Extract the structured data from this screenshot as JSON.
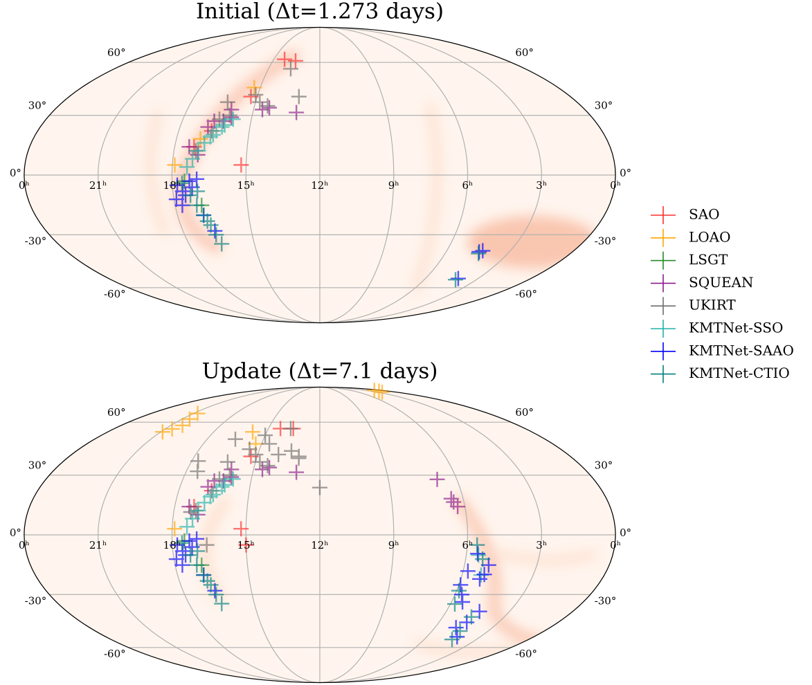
{
  "chart_data": [
    {
      "type": "skymap",
      "title": "Initial (Δt=1.273 days)",
      "grid": true,
      "xticks": [
        {
          "value": 24,
          "label": "0ʰ"
        },
        {
          "value": 21,
          "label": "21ʰ"
        },
        {
          "value": 18,
          "label": "18ʰ"
        },
        {
          "value": 15,
          "label": "15ʰ"
        },
        {
          "value": 12,
          "label": "12ʰ"
        },
        {
          "value": 9,
          "label": "9ʰ"
        },
        {
          "value": 6,
          "label": "6ʰ"
        },
        {
          "value": 3,
          "label": "3ʰ"
        },
        {
          "value": 0,
          "label": "0ʰ"
        }
      ],
      "yticks": [
        {
          "value": -60,
          "label": "-60°"
        },
        {
          "value": -30,
          "label": "-30°"
        },
        {
          "value": 0,
          "label": "0°"
        },
        {
          "value": 30,
          "label": "30°"
        },
        {
          "value": 60,
          "label": "60°"
        }
      ],
      "series": [
        {
          "name": "SAO",
          "color": "#ff2f2f",
          "x": [
            14.3,
            13.55,
            15.3,
            15.2,
            16.6,
            17.2
          ],
          "values": [
            62,
            61,
            40,
            5,
            22,
            14
          ]
        },
        {
          "name": "LOAO",
          "color": "#ffa500",
          "x": [
            15.3,
            17.9,
            17.0
          ],
          "values": [
            45,
            5,
            18
          ]
        },
        {
          "name": "LSGT",
          "color": "#228b22",
          "x": [
            17.5,
            16.9
          ],
          "values": [
            -3,
            -15
          ]
        },
        {
          "name": "SQUEAN",
          "color": "#8b1a8b",
          "x": [
            16.2,
            16.8,
            17.4,
            16.6,
            15.9,
            14.6,
            14.3,
            13.05,
            17.0,
            16.0
          ],
          "values": [
            27,
            24,
            14,
            27,
            29,
            33,
            34,
            31.5,
            10,
            33
          ]
        },
        {
          "name": "UKIRT",
          "color": "#6e6e6e",
          "x": [
            13.7,
            13.0,
            15.1,
            14.8,
            16.3,
            14.4,
            17.1,
            16.0,
            16.4
          ],
          "values": [
            56,
            40,
            41,
            37,
            37,
            35,
            12,
            30,
            28
          ]
        },
        {
          "name": "KMTNet-SSO",
          "color": "#20b2aa",
          "x": [
            15.8,
            16.1,
            16.4,
            16.6,
            16.8,
            17.0,
            17.2,
            17.4,
            16.2,
            16.5
          ],
          "values": [
            28,
            25,
            22,
            19,
            16,
            12,
            8,
            4,
            24,
            20
          ]
        },
        {
          "name": "KMTNet-SAAO",
          "color": "#0000ff",
          "x": [
            17.8,
            17.6,
            17.3,
            17.9,
            17.5,
            17.0,
            17.7,
            16.9,
            16.6,
            17.2,
            4.13,
            4.43,
            4.3
          ],
          "values": [
            -5,
            -8,
            -3,
            -12,
            -10,
            -2,
            -15,
            -20,
            -28,
            -6,
            -54.3,
            -39.1,
            -38.5
          ]
        },
        {
          "name": "KMTNet-CTIO",
          "color": "#008080",
          "x": [
            17.3,
            17.1,
            16.9,
            16.7,
            16.6,
            16.5,
            17.6,
            17.0,
            16.8,
            4.4,
            4.2
          ],
          "values": [
            -10,
            -15,
            -20,
            -25,
            -30,
            -34.8,
            -4,
            -8,
            -23,
            -40,
            -55
          ]
        }
      ]
    },
    {
      "type": "skymap",
      "title": "Update (Δt=7.1 days)",
      "grid": true,
      "xticks": [
        {
          "value": 24,
          "label": "0ʰ"
        },
        {
          "value": 21,
          "label": "21ʰ"
        },
        {
          "value": 18,
          "label": "18ʰ"
        },
        {
          "value": 15,
          "label": "15ʰ"
        },
        {
          "value": 12,
          "label": "12ʰ"
        },
        {
          "value": 9,
          "label": "9ʰ"
        },
        {
          "value": 6,
          "label": "6ʰ"
        },
        {
          "value": 3,
          "label": "3ʰ"
        },
        {
          "value": 0,
          "label": "0ʰ"
        }
      ],
      "yticks": [
        {
          "value": -60,
          "label": "-60°"
        },
        {
          "value": -30,
          "label": "-30°"
        },
        {
          "value": 0,
          "label": "0°"
        },
        {
          "value": 30,
          "label": "30°"
        },
        {
          "value": 60,
          "label": "60°"
        }
      ],
      "series": [
        {
          "name": "SAO",
          "color": "#ff2f2f",
          "x": [
            14.3,
            13.55,
            15.3,
            15.2,
            16.6,
            17.2,
            15.0
          ],
          "values": [
            56,
            56,
            40,
            3,
            22,
            14,
            -5
          ]
        },
        {
          "name": "LOAO",
          "color": "#ffa500",
          "x": [
            20.6,
            20.7,
            20.3,
            20.9,
            20.5,
            15.8,
            15.3,
            1.7,
            2.2,
            1.3,
            17.9
          ],
          "values": [
            55.8,
            65.8,
            58,
            54,
            62,
            54,
            47,
            84,
            83,
            85,
            3
          ]
        },
        {
          "name": "LSGT",
          "color": "#228b22",
          "x": [
            17.5,
            16.9
          ],
          "values": [
            -3,
            -15
          ]
        },
        {
          "name": "SQUEAN",
          "color": "#8b1a8b",
          "x": [
            16.2,
            16.8,
            17.4,
            16.6,
            15.9,
            14.6,
            14.3,
            13.05,
            17.0,
            16.0,
            6.86,
            6.43,
            6.5,
            6.3
          ],
          "values": [
            27,
            24,
            14,
            27,
            29,
            33,
            34,
            31.5,
            10,
            33,
            27.8,
            16.3,
            18,
            14
          ]
        },
        {
          "name": "UKIRT",
          "color": "#6e6e6e",
          "x": [
            13.7,
            13.0,
            15.1,
            14.8,
            16.3,
            14.4,
            17.1,
            16.0,
            16.4,
            16.5,
            17.7,
            12.0,
            13.0,
            17.5,
            17.3,
            15.5,
            14.6,
            15.0,
            14.0,
            13.4,
            16.6
          ],
          "values": [
            56,
            40,
            41,
            37,
            37,
            35,
            12,
            30,
            28,
            49.7,
            37.5,
            23.6,
            39,
            32,
            11.3,
            44,
            47,
            52,
            41,
            43,
            -5
          ]
        },
        {
          "name": "KMTNet-SSO",
          "color": "#20b2aa",
          "x": [
            15.8,
            16.1,
            16.4,
            16.6,
            16.8,
            17.0,
            17.2,
            17.4,
            16.2,
            16.5,
            5.5,
            5.2
          ],
          "values": [
            28,
            25,
            22,
            19,
            16,
            12,
            8,
            4,
            24,
            20,
            -10,
            -20
          ]
        },
        {
          "name": "KMTNet-SAAO",
          "color": "#0000ff",
          "x": [
            17.8,
            17.6,
            17.3,
            17.9,
            17.5,
            17.0,
            17.7,
            16.9,
            16.6,
            17.2,
            5.54,
            5.07,
            5.5,
            4.3,
            4.42,
            5.93,
            5.7,
            4.6,
            5.0,
            5.8,
            5.2,
            4.9
          ],
          "values": [
            -5,
            -8,
            -3,
            -12,
            -10,
            -2,
            -15,
            -20,
            -28,
            -6,
            -9.3,
            -19.7,
            -33.9,
            -53.4,
            -39,
            -25,
            -30,
            -45,
            -15,
            -18,
            -22,
            -48
          ]
        },
        {
          "name": "KMTNet-CTIO",
          "color": "#008080",
          "x": [
            17.3,
            17.1,
            16.9,
            16.7,
            16.6,
            16.5,
            17.6,
            17.0,
            16.8,
            5.6,
            5.3,
            5.9,
            4.5,
            4.4,
            5.8,
            4.6
          ],
          "values": [
            -10,
            -15,
            -20,
            -25,
            -30,
            -34.8,
            -4,
            -8,
            -23,
            -5,
            -12,
            -28,
            -50,
            -55,
            -35,
            -42
          ]
        }
      ]
    }
  ]
}
